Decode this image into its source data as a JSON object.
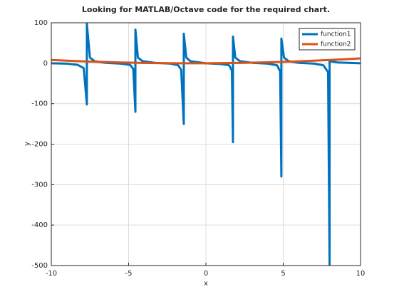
{
  "chart_data": {
    "type": "line",
    "title": "Looking for MATLAB/Octave code for the required chart.",
    "xlabel": "x",
    "ylabel": "y",
    "x": [
      -10,
      -9,
      -8.3,
      -7.9,
      -7.7,
      -7.7,
      -7.5,
      -7.2,
      -6.5,
      -5.5,
      -4.9,
      -4.7,
      -4.56,
      -4.56,
      -4.4,
      -4.1,
      -3.3,
      -2.3,
      -1.8,
      -1.6,
      -1.43,
      -1.43,
      -1.27,
      -1.0,
      0,
      1.0,
      1.5,
      1.68,
      1.75,
      1.75,
      1.9,
      2.2,
      3,
      4,
      4.6,
      4.8,
      4.88,
      4.88,
      5.05,
      5.35,
      6,
      7,
      7.6,
      7.9,
      8.0,
      8.0,
      8.2,
      8.5,
      9.2,
      10
    ],
    "series": [
      {
        "name": "function1",
        "color": "#0072bd",
        "values": [
          0,
          -1,
          -4,
          -12,
          -102,
          97,
          14,
          5,
          1,
          -1,
          -4,
          -14,
          -120,
          83,
          14,
          5,
          1,
          -1,
          -5,
          -16,
          -150,
          73,
          14,
          5,
          0,
          -2,
          -5,
          -18,
          -195,
          66,
          14,
          5,
          1,
          -1,
          -5,
          -20,
          -280,
          61,
          14,
          5,
          1,
          -1,
          -5,
          -22,
          -500,
          5,
          4,
          2,
          1,
          0
        ]
      },
      {
        "name": "function2",
        "color": "#d95319",
        "values": [
          8,
          6.3,
          5.2,
          4.7,
          4.4,
          4.4,
          4.1,
          3.7,
          2.9,
          1.9,
          1.4,
          1.3,
          1.2,
          1.2,
          1.1,
          0.9,
          0.4,
          0.1,
          0,
          -0.1,
          -0.1,
          -0.1,
          -0.1,
          -0.1,
          0,
          0.3,
          0.5,
          0.6,
          0.7,
          0.7,
          0.7,
          0.9,
          1.5,
          2.4,
          3.0,
          3.3,
          3.4,
          3.4,
          3.6,
          3.9,
          4.8,
          6.3,
          7.3,
          7.8,
          8,
          8,
          8.4,
          8.9,
          10.3,
          12
        ]
      }
    ],
    "xlim": [
      -10,
      10
    ],
    "xticks": [
      -10,
      -5,
      0,
      5,
      10
    ],
    "ylim": [
      -500,
      100
    ],
    "yticks": [
      -500,
      -400,
      -300,
      -200,
      -100,
      0,
      100
    ],
    "grid": true,
    "legend": "top-right"
  }
}
